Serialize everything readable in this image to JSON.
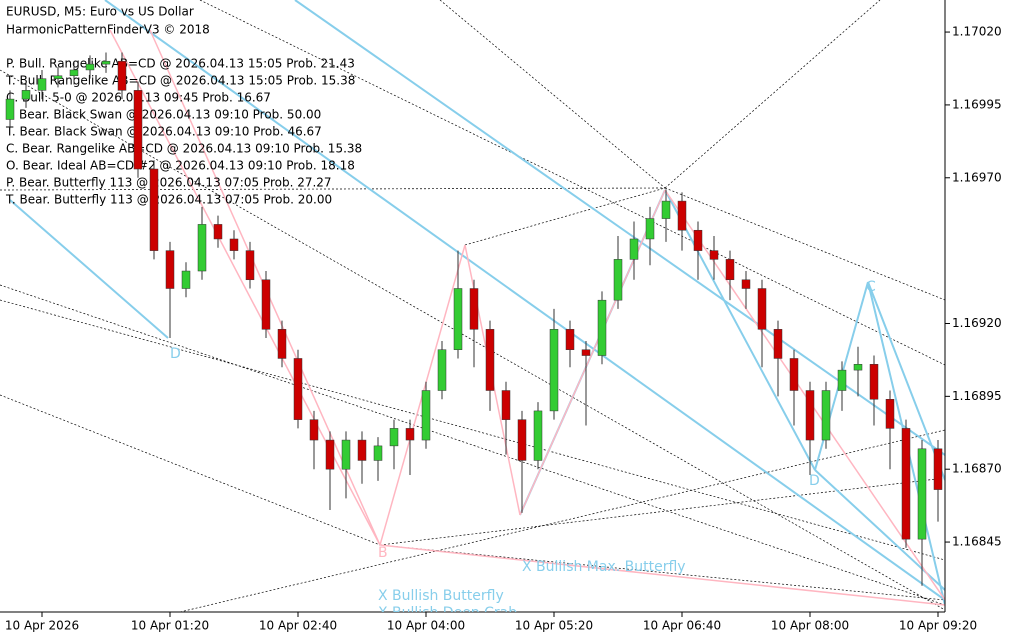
{
  "chart_data": {
    "type": "candlestick",
    "title": "EURUSD, M5:  Euro vs US Dollar",
    "subtitle": "HarmonicPatternFinderV3 © 2018",
    "annotations": [
      "P. Bull. Rangelike AB=CD @ 2026.04.13 15:05 Prob. 21.43",
      "T. Bull. Rangelike AB=CD @ 2026.04.13 15:05 Prob. 15.38",
      "C. Bull. 5-0 @ 2026.04.13 09:45 Prob. 16.67",
      "P. Bear. Black Swan @ 2026.04.13 09:10 Prob. 50.00",
      "T. Bear. Black Swan @ 2026.04.13 09:10 Prob. 46.67",
      "C. Bear. Rangelike AB=CD @ 2026.04.13 09:10 Prob. 15.38",
      "O. Bear. Ideal AB=CD #2 @ 2026.04.13 09:10 Prob. 18.18",
      "P. Bear. Butterfly 113 @ 2026.04.13 07:05 Prob. 27.27",
      "T. Bear. Butterfly 113 @ 2026.04.13 07:05 Prob. 20.00"
    ],
    "pattern_labels": [
      "D",
      "B",
      "C",
      "D",
      "X Bullish Butterfly",
      "X Bullish Max. Butterfly",
      "X Bullish Deep Crab"
    ],
    "categories": [
      null,
      null,
      "10 Apr 2026",
      null,
      null,
      null,
      null,
      null,
      null,
      null,
      "10 Apr 01:20",
      null,
      null,
      null,
      null,
      null,
      null,
      null,
      "10 Apr 02:40",
      null,
      null,
      null,
      null,
      null,
      null,
      null,
      "10 Apr 04:00",
      null,
      null,
      null,
      null,
      null,
      null,
      null,
      "10 Apr 05:20",
      null,
      null,
      null,
      null,
      null,
      null,
      null,
      "10 Apr 06:40",
      null,
      null,
      null,
      null,
      null,
      null,
      null,
      "10 Apr 08:00",
      null,
      null,
      null,
      null,
      null,
      null,
      null,
      "10 Apr 09:20"
    ],
    "open": [
      1.1699,
      1.16997,
      1.17,
      1.17004,
      1.17005,
      1.17007,
      1.17009,
      1.1701,
      1.17,
      1.16973,
      1.16945,
      1.16932,
      1.16938,
      1.16954,
      1.16949,
      1.16945,
      1.16935,
      1.16918,
      1.16908,
      1.16887,
      1.1688,
      1.1687,
      1.1688,
      1.16873,
      1.16878,
      1.16884,
      1.1688,
      1.16897,
      1.16911,
      1.16932,
      1.16918,
      1.16897,
      1.16887,
      1.16873,
      1.1689,
      1.16918,
      1.16911,
      1.16909,
      1.16928,
      1.16942,
      1.16949,
      1.16956,
      1.16962,
      1.16952,
      1.16945,
      1.16942,
      1.16935,
      1.16932,
      1.16918,
      1.16908,
      1.16897,
      1.1688,
      1.16897,
      1.16904,
      1.16906,
      1.16894,
      1.16884,
      1.16846,
      1.16877
    ],
    "high": [
      1.17,
      1.17003,
      1.17007,
      1.17008,
      1.1701,
      1.17012,
      1.17013,
      1.17013,
      1.17003,
      1.16976,
      1.16948,
      1.16941,
      1.1696,
      1.16957,
      1.16952,
      1.16948,
      1.16938,
      1.16921,
      1.16911,
      1.1689,
      1.16883,
      1.16883,
      1.16883,
      1.16881,
      1.16887,
      1.16887,
      1.169,
      1.16914,
      1.16945,
      1.16935,
      1.16921,
      1.169,
      1.1689,
      1.16893,
      1.16925,
      1.16921,
      1.16914,
      1.16931,
      1.1695,
      1.16955,
      1.1696,
      1.16966,
      1.16965,
      1.16955,
      1.1695,
      1.16945,
      1.16938,
      1.16935,
      1.16921,
      1.16911,
      1.169,
      1.169,
      1.16907,
      1.16912,
      1.16909,
      1.16897,
      1.16887,
      1.1688,
      1.1688
    ],
    "low": [
      1.16987,
      1.16994,
      1.16997,
      1.17001,
      1.17002,
      1.17004,
      1.17006,
      1.16997,
      1.1697,
      1.16942,
      1.16915,
      1.16929,
      1.16935,
      1.16946,
      1.16942,
      1.16932,
      1.16915,
      1.16905,
      1.16884,
      1.1687,
      1.16856,
      1.1686,
      1.16865,
      1.16866,
      1.1687,
      1.16868,
      1.16877,
      1.16894,
      1.16908,
      1.16905,
      1.1689,
      1.16875,
      1.16855,
      1.1687,
      1.16887,
      1.16905,
      1.16885,
      1.16906,
      1.16925,
      1.16935,
      1.1694,
      1.16948,
      1.16945,
      1.16935,
      1.16935,
      1.16928,
      1.16925,
      1.16905,
      1.16895,
      1.16885,
      1.16868,
      1.16877,
      1.1689,
      1.16895,
      1.16885,
      1.1687,
      1.16843,
      1.1683,
      1.16852
    ],
    "close": [
      1.16997,
      1.17,
      1.17004,
      1.17005,
      1.17007,
      1.17009,
      1.1701,
      1.17,
      1.16973,
      1.16945,
      1.16932,
      1.16938,
      1.16954,
      1.16949,
      1.16945,
      1.16935,
      1.16918,
      1.16908,
      1.16887,
      1.1688,
      1.1687,
      1.1688,
      1.16873,
      1.16878,
      1.16884,
      1.1688,
      1.16897,
      1.16911,
      1.16932,
      1.16918,
      1.16897,
      1.16887,
      1.16873,
      1.1689,
      1.16918,
      1.16911,
      1.16909,
      1.16928,
      1.16942,
      1.16949,
      1.16956,
      1.16962,
      1.16952,
      1.16945,
      1.16942,
      1.16935,
      1.16932,
      1.16918,
      1.16908,
      1.16897,
      1.1688,
      1.16897,
      1.16904,
      1.16906,
      1.16894,
      1.16884,
      1.16846,
      1.16877,
      1.16863
    ],
    "up_color": "#33cc33",
    "down_color": "#cc0000",
    "ylim": [
      1.16821,
      1.17031
    ],
    "yticks": [
      {
        "value": 1.1702,
        "label": "1.17020"
      },
      {
        "value": 1.16995,
        "label": "1.16995"
      },
      {
        "value": 1.1697,
        "label": "1.16970"
      },
      {
        "value": 1.1692,
        "label": "1.16920"
      },
      {
        "value": 1.16895,
        "label": "1.16895"
      },
      {
        "value": 1.1687,
        "label": "1.16870"
      },
      {
        "value": 1.16845,
        "label": "1.16845"
      }
    ]
  }
}
